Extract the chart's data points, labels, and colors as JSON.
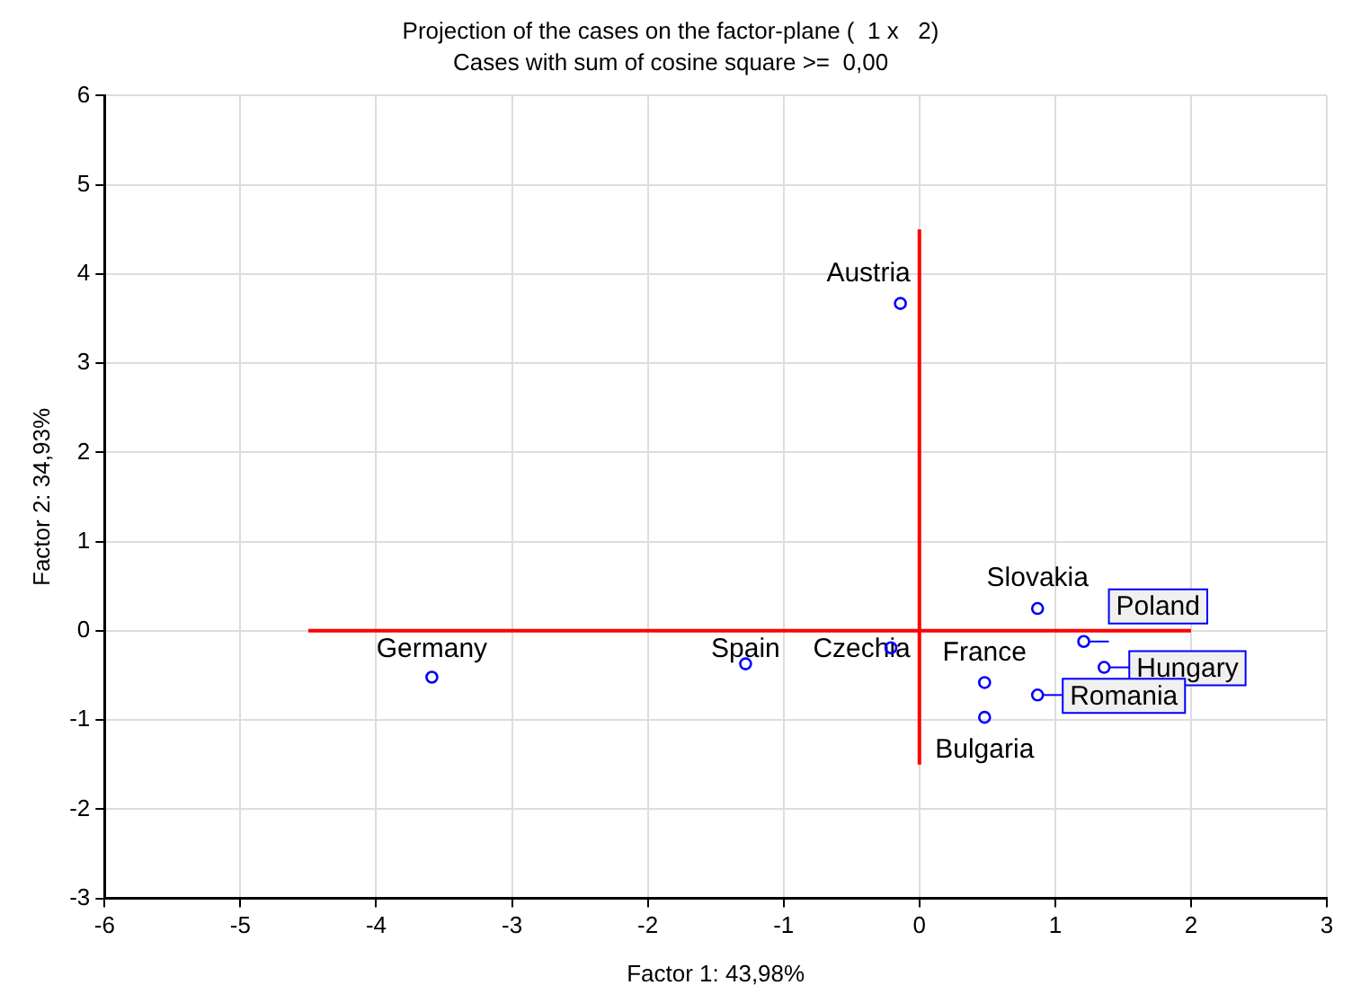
{
  "chart_data": {
    "type": "scatter",
    "title": "Projection of the cases on the factor-plane (  1 x   2)",
    "subtitle": "Cases with sum of cosine square >=  0,00",
    "xlabel": "Factor 1: 43,98%",
    "ylabel": "Factor 2: 34,93%",
    "xlim": [
      -6,
      3
    ],
    "ylim": [
      -3,
      6
    ],
    "xticks": [
      -6,
      -5,
      -4,
      -3,
      -2,
      -1,
      0,
      1,
      2,
      3
    ],
    "yticks": [
      -3,
      -2,
      -1,
      0,
      1,
      2,
      3,
      4,
      5,
      6
    ],
    "grid": true,
    "legend": false,
    "marker": "circle",
    "series": [
      {
        "color": "#0000ff",
        "x": [
          -0.14,
          -0.21,
          -1.28,
          -3.59,
          0.87,
          1.21,
          1.36,
          0.48,
          0.87,
          0.48
        ],
        "values": [
          3.67,
          -0.19,
          -0.37,
          -0.52,
          0.25,
          -0.12,
          -0.41,
          -0.58,
          -0.72,
          -0.97
        ]
      },
      {
        "type": "line",
        "marker": "none",
        "color": "#ff0000",
        "x": [
          -4.5,
          2
        ],
        "values": [
          0,
          0
        ]
      },
      {
        "type": "line",
        "marker": "none",
        "color": "#ff0000",
        "x": [
          0,
          0
        ],
        "values": [
          -1.5,
          4.5
        ]
      }
    ],
    "annotations": [
      {
        "text": "Austria",
        "x": -0.14,
        "y": 3.67
      },
      {
        "text": "Czechia",
        "x": -0.21,
        "y": -0.19
      },
      {
        "text": "Spain",
        "x": -1.28,
        "y": -0.37
      },
      {
        "text": "Germany",
        "x": -3.59,
        "y": -0.52
      },
      {
        "text": "Slovakia",
        "x": 0.87,
        "y": 0.25
      },
      {
        "text": "Poland",
        "x": 1.21,
        "y": -0.12
      },
      {
        "text": "Hungary",
        "x": 1.36,
        "y": -0.41
      },
      {
        "text": "France",
        "x": 0.48,
        "y": -0.58
      },
      {
        "text": "Romania",
        "x": 0.87,
        "y": -0.72
      },
      {
        "text": "Bulgaria",
        "x": 0.48,
        "y": -0.97
      }
    ]
  }
}
